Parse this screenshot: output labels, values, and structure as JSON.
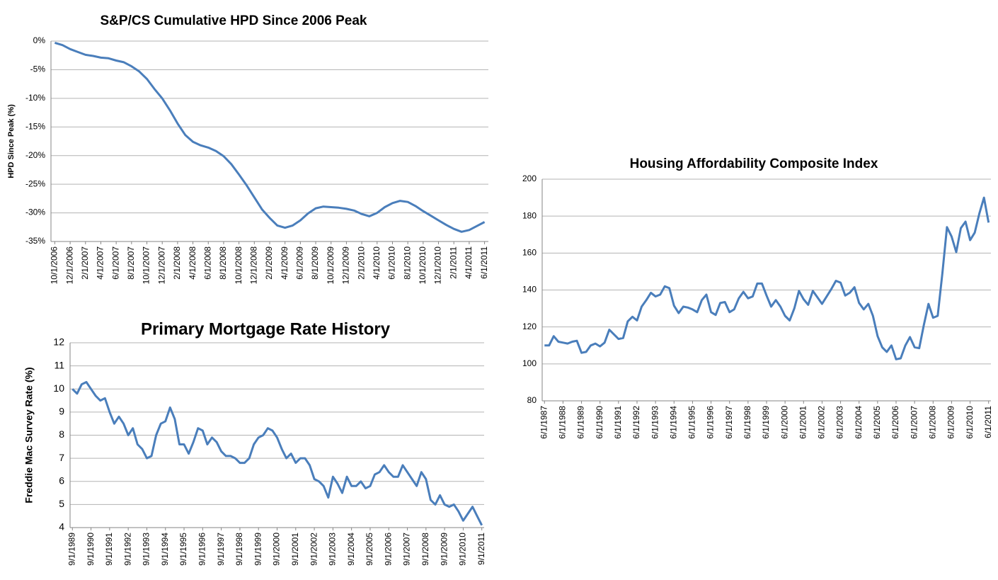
{
  "chart_data": [
    {
      "type": "line",
      "title": "S&P/CS Cumulative HPD Since 2006 Peak",
      "y_label": "HPD Since Peak (%)",
      "color": "#4a7ebb",
      "categories": [
        "10/1/2006",
        null,
        "12/1/2006",
        null,
        "2/1/2007",
        null,
        "4/1/2007",
        null,
        "6/1/2007",
        null,
        "8/1/2007",
        null,
        "10/1/2007",
        null,
        "12/1/2007",
        null,
        "2/1/2008",
        null,
        "4/1/2008",
        null,
        "6/1/2008",
        null,
        "8/1/2008",
        null,
        "10/1/2008",
        null,
        "12/1/2008",
        null,
        "2/1/2009",
        null,
        "4/1/2009",
        null,
        "6/1/2009",
        null,
        "8/1/2009",
        null,
        "10/1/2009",
        null,
        "12/1/2009",
        null,
        "2/1/2010",
        null,
        "4/1/2010",
        null,
        "6/1/2010",
        null,
        "8/1/2010",
        null,
        "10/1/2010",
        null,
        "12/1/2010",
        null,
        "2/1/2011",
        null,
        "4/1/2011",
        null,
        "6/1/2011"
      ],
      "values": [
        -0.3,
        -0.7,
        -1.4,
        -1.9,
        -2.4,
        -2.6,
        -2.9,
        -3.0,
        -3.4,
        -3.7,
        -4.4,
        -5.3,
        -6.6,
        -8.4,
        -10.0,
        -12.1,
        -14.4,
        -16.4,
        -17.6,
        -18.2,
        -18.6,
        -19.2,
        -20.1,
        -21.5,
        -23.3,
        -25.2,
        -27.3,
        -29.4,
        -30.9,
        -32.2,
        -32.6,
        -32.2,
        -31.3,
        -30.1,
        -29.2,
        -28.9,
        -29.0,
        -29.1,
        -29.3,
        -29.6,
        -30.2,
        -30.6,
        -30.0,
        -29.0,
        -28.3,
        -27.9,
        -28.1,
        -28.8,
        -29.7,
        -30.5,
        -31.3,
        -32.1,
        -32.8,
        -33.3,
        -33.0,
        -32.3,
        -31.6
      ],
      "ylim": [
        -35,
        0
      ],
      "yticks": [
        {
          "value": 0,
          "label": "0%"
        },
        {
          "value": -5,
          "label": "-5%"
        },
        {
          "value": -10,
          "label": "-10%"
        },
        {
          "value": -15,
          "label": "-15%"
        },
        {
          "value": -20,
          "label": "-20%"
        },
        {
          "value": -25,
          "label": "-25%"
        },
        {
          "value": -30,
          "label": "-30%"
        },
        {
          "value": -35,
          "label": "-35%"
        }
      ],
      "grid": true
    },
    {
      "type": "line",
      "title": "Housing Affordability Composite Index",
      "color": "#4a7ebb",
      "categories": [
        "6/1/1987",
        null,
        null,
        null,
        "6/1/1988",
        null,
        null,
        null,
        "6/1/1989",
        null,
        null,
        null,
        "6/1/1990",
        null,
        null,
        null,
        "6/1/1991",
        null,
        null,
        null,
        "6/1/1992",
        null,
        null,
        null,
        "6/1/1993",
        null,
        null,
        null,
        "6/1/1994",
        null,
        null,
        null,
        "6/1/1995",
        null,
        null,
        null,
        "6/1/1996",
        null,
        null,
        null,
        "6/1/1997",
        null,
        null,
        null,
        "6/1/1998",
        null,
        null,
        null,
        "6/1/1999",
        null,
        null,
        null,
        "6/1/2000",
        null,
        null,
        null,
        "6/1/2001",
        null,
        null,
        null,
        "6/1/2002",
        null,
        null,
        null,
        "6/1/2003",
        null,
        null,
        null,
        "6/1/2004",
        null,
        null,
        null,
        "6/1/2005",
        null,
        null,
        null,
        "6/1/2006",
        null,
        null,
        null,
        "6/1/2007",
        null,
        null,
        null,
        "6/1/2008",
        null,
        null,
        null,
        "6/1/2009",
        null,
        null,
        null,
        "6/1/2010",
        null,
        null,
        null,
        "6/1/2011"
      ],
      "values": [
        110,
        110,
        115,
        112,
        111.5,
        111,
        112,
        112.5,
        106,
        106.5,
        110,
        111,
        109.5,
        111.5,
        118.5,
        116,
        113.5,
        114,
        123,
        125.5,
        123.5,
        131,
        134.5,
        138.5,
        136.5,
        137.5,
        142,
        141,
        131.5,
        127.5,
        131,
        130.5,
        129.5,
        128,
        134.5,
        137.5,
        128,
        126.5,
        133,
        133.5,
        128,
        129.5,
        135.5,
        139,
        135.5,
        136.5,
        143.5,
        143.5,
        137,
        131,
        134.5,
        131,
        126,
        123.5,
        130,
        139.5,
        135,
        132,
        139.5,
        136,
        132.5,
        136.5,
        140.5,
        145,
        144,
        137,
        138.5,
        141.5,
        133,
        129.5,
        132.5,
        126,
        115,
        109,
        106.5,
        110,
        102.5,
        103,
        110,
        114.5,
        109,
        108.5,
        121,
        132.5,
        125,
        126,
        149,
        174,
        169,
        160.5,
        173.5,
        177,
        167,
        171,
        181.5,
        190,
        176.5
      ],
      "ylim": [
        80,
        200
      ],
      "yticks": [
        80,
        100,
        120,
        140,
        160,
        180,
        200
      ],
      "grid": true
    },
    {
      "type": "line",
      "title": "Primary Mortgage Rate History",
      "y_label": "Freddie Mac Survey Rate (%)",
      "color": "#4a7ebb",
      "categories": [
        "9/1/1989",
        null,
        null,
        null,
        "9/1/1990",
        null,
        null,
        null,
        "9/1/1991",
        null,
        null,
        null,
        "9/1/1992",
        null,
        null,
        null,
        "9/1/1993",
        null,
        null,
        null,
        "9/1/1994",
        null,
        null,
        null,
        "9/1/1995",
        null,
        null,
        null,
        "9/1/1996",
        null,
        null,
        null,
        "9/1/1997",
        null,
        null,
        null,
        "9/1/1998",
        null,
        null,
        null,
        "9/1/1999",
        null,
        null,
        null,
        "9/1/2000",
        null,
        null,
        null,
        "9/1/2001",
        null,
        null,
        null,
        "9/1/2002",
        null,
        null,
        null,
        "9/1/2003",
        null,
        null,
        null,
        "9/1/2004",
        null,
        null,
        null,
        "9/1/2005",
        null,
        null,
        null,
        "9/1/2006",
        null,
        null,
        null,
        "9/1/2007",
        null,
        null,
        null,
        "9/1/2008",
        null,
        null,
        null,
        "9/1/2009",
        null,
        null,
        null,
        "9/1/2010",
        null,
        null,
        null,
        "9/1/2011"
      ],
      "values": [
        10.0,
        9.8,
        10.2,
        10.3,
        10.0,
        9.7,
        9.5,
        9.6,
        9.0,
        8.5,
        8.8,
        8.5,
        8.0,
        8.3,
        7.6,
        7.4,
        7.0,
        7.1,
        8.0,
        8.5,
        8.6,
        9.2,
        8.7,
        7.6,
        7.6,
        7.2,
        7.7,
        8.3,
        8.2,
        7.6,
        7.9,
        7.7,
        7.3,
        7.1,
        7.1,
        7.0,
        6.8,
        6.8,
        7.0,
        7.6,
        7.9,
        8.0,
        8.3,
        8.2,
        7.9,
        7.4,
        7.0,
        7.2,
        6.8,
        7.0,
        7.0,
        6.7,
        6.1,
        6.0,
        5.8,
        5.3,
        6.2,
        5.9,
        5.5,
        6.2,
        5.8,
        5.8,
        6.0,
        5.7,
        5.8,
        6.3,
        6.4,
        6.7,
        6.4,
        6.2,
        6.2,
        6.7,
        6.4,
        6.1,
        5.8,
        6.4,
        6.1,
        5.2,
        5.0,
        5.4,
        5.0,
        4.9,
        5.0,
        4.7,
        4.3,
        4.6,
        4.9,
        4.5,
        4.1
      ],
      "ylim": [
        4,
        12
      ],
      "yticks": [
        4,
        5,
        6,
        7,
        8,
        9,
        10,
        11,
        12
      ],
      "grid": true
    }
  ]
}
